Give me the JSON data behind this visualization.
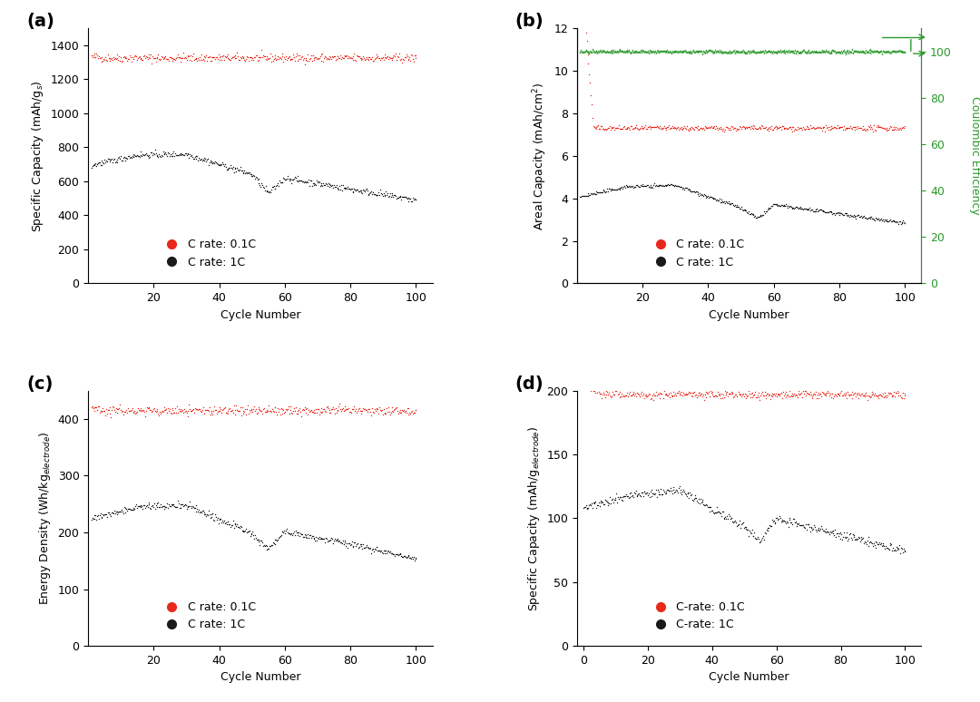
{
  "fig_width": 10.8,
  "fig_height": 7.74,
  "background_color": "#ffffff",
  "panel_labels": [
    "(a)",
    "(b)",
    "(c)",
    "(d)"
  ],
  "red_color": "#e8281a",
  "black_color": "#1a1a1a",
  "green_color": "#2a9a2a",
  "panel_a": {
    "ylabel": "Specific Capacity (mAh/g$_s$)",
    "xlabel": "Cycle Number",
    "ylim": [
      0,
      1500
    ],
    "xlim": [
      0,
      105
    ],
    "yticks": [
      0,
      200,
      400,
      600,
      800,
      1000,
      1200,
      1400
    ],
    "xticks": [
      20,
      40,
      60,
      80,
      100
    ],
    "red_base": 1325,
    "red_noise": 12,
    "legend_labels": [
      "C rate: 0.1C",
      "C rate: 1C"
    ]
  },
  "panel_b": {
    "ylabel": "Areal Capacity (mAh/cm$^2$)",
    "ylabel2": "Coulombic Efficiency",
    "xlabel": "Cycle Number",
    "ylim": [
      0,
      12
    ],
    "ylim2": [
      0,
      110
    ],
    "xlim": [
      0,
      105
    ],
    "yticks": [
      0,
      2,
      4,
      6,
      8,
      10,
      12
    ],
    "yticks2": [
      0,
      20,
      40,
      60,
      80,
      100
    ],
    "xticks": [
      20,
      40,
      60,
      80,
      100
    ],
    "red_base": 7.3,
    "red_noise": 0.06,
    "green_base": 100.5,
    "green_noise": 0.4,
    "legend_labels": [
      "C rate: 0.1C",
      "C rate: 1C"
    ]
  },
  "panel_c": {
    "ylabel": "Energy Density (Wh/kg$_{electrode}$)",
    "xlabel": "Cycle Number",
    "ylim": [
      0,
      450
    ],
    "xlim": [
      0,
      105
    ],
    "yticks": [
      0,
      100,
      200,
      300,
      400
    ],
    "xticks": [
      20,
      40,
      60,
      80,
      100
    ],
    "red_base": 415,
    "red_noise": 4,
    "legend_labels": [
      "C rate: 0.1C",
      "C rate: 1C"
    ]
  },
  "panel_d": {
    "ylabel": "Specific Capacity (mAh/g$_{electrode}$)",
    "xlabel": "Cycle Number",
    "ylim": [
      0,
      200
    ],
    "xlim": [
      -2,
      105
    ],
    "yticks": [
      0,
      50,
      100,
      150,
      200
    ],
    "xticks": [
      0,
      20,
      40,
      60,
      80,
      100
    ],
    "red_base": 197,
    "red_noise": 1.5,
    "legend_labels": [
      "C-rate: 0.1C",
      "C-rate: 1C"
    ]
  }
}
